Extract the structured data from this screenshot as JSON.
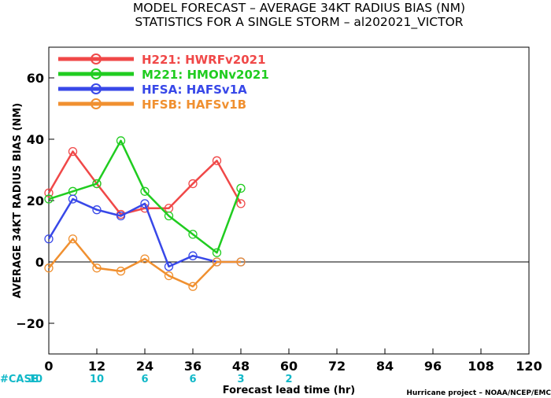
{
  "chart_data": {
    "type": "line",
    "title": "MODEL FORECAST – AVERAGE 34KT RADIUS BIAS (NM)",
    "subtitle": "STATISTICS FOR A SINGLE STORM – al202021_VICTOR",
    "xlabel": "Forecast lead time (hr)",
    "ylabel": "AVERAGE 34KT RADIUS BIAS (NM)",
    "xlim": [
      0,
      120
    ],
    "ylim": [
      -30,
      70
    ],
    "xticks": [
      0,
      12,
      24,
      36,
      48,
      60,
      72,
      84,
      96,
      108,
      120
    ],
    "yticks": [
      -20,
      0,
      20,
      40,
      60
    ],
    "zero_line": true,
    "grid": false,
    "legend_position": "top-left",
    "series": [
      {
        "name": "H221:  HWRFv2021",
        "color": "#f04848",
        "x": [
          0,
          6,
          12,
          18,
          24,
          30,
          36,
          42,
          48
        ],
        "values": [
          22.5,
          36,
          25.5,
          15.5,
          17.5,
          17.5,
          25.5,
          33,
          19
        ]
      },
      {
        "name": "M221:  HMONv2021",
        "color": "#20cc20",
        "x": [
          0,
          6,
          12,
          18,
          24,
          30,
          36,
          42,
          48
        ],
        "values": [
          20.5,
          23,
          25.5,
          39.5,
          23,
          15,
          9,
          3,
          24
        ]
      },
      {
        "name": "HFSA:  HAFSv1A",
        "color": "#3848e8",
        "x": [
          0,
          6,
          12,
          18,
          24,
          30,
          36,
          42,
          48
        ],
        "values": [
          7.5,
          20.5,
          17,
          15,
          19,
          -1.5,
          2,
          0,
          0
        ]
      },
      {
        "name": "HFSB:  HAFSv1B",
        "color": "#f09030",
        "x": [
          0,
          6,
          12,
          18,
          24,
          30,
          36,
          42,
          48
        ],
        "values": [
          -2,
          7.5,
          -2,
          -3,
          1,
          -4.5,
          -8,
          0,
          0
        ]
      }
    ],
    "case_label": "#CASE",
    "cases": [
      {
        "x": 0,
        "count": "10"
      },
      {
        "x": 12,
        "count": "10"
      },
      {
        "x": 24,
        "count": "6"
      },
      {
        "x": 36,
        "count": "6"
      },
      {
        "x": 48,
        "count": "3"
      },
      {
        "x": 60,
        "count": "2"
      }
    ],
    "credit": "Hurricane project – NOAA/NCEP/EMC"
  }
}
